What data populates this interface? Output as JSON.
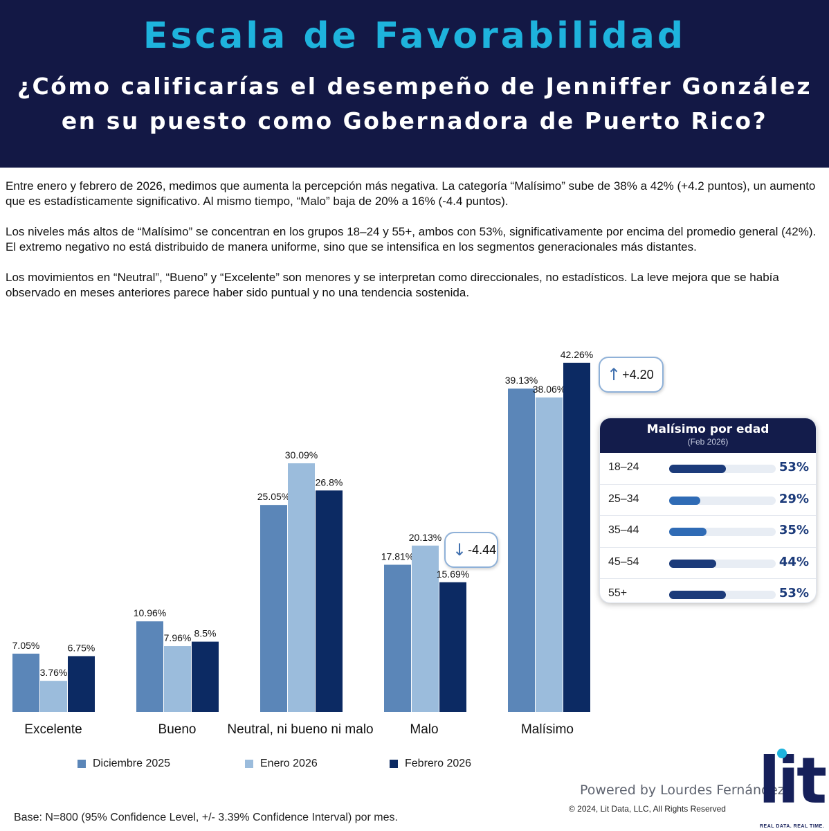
{
  "header": {
    "title": "Escala de Favorabilidad",
    "question_line1": "¿Cómo calificarías el desempeño de Jenniffer González",
    "question_line2": "en su puesto como Gobernadora de Puerto Rico?"
  },
  "paragraphs": [
    "Entre enero y febrero de 2026, medimos que aumenta la percepción más negativa. La categoría “Malísimo” sube de 38% a 42% (+4.2 puntos), un aumento que es estadísticamente significativo. Al mismo tiempo, “Malo” baja de 20% a 16% (-4.4 puntos).",
    "Los niveles más altos de “Malísimo” se concentran en los grupos 18–24 y 55+, ambos con 53%, significativamente por encima del promedio general (42%). El extremo negativo no está distribuido de manera uniforme, sino que se intensifica en los segmentos generacionales más distantes.",
    "Los movimientos en “Neutral”, “Bueno” y “Excelente” son menores y se interpretan como direccionales, no estadísticos. La leve mejora que se había observado en meses anteriores parece haber sido puntual y no una tendencia sostenida."
  ],
  "chart_data": {
    "type": "bar",
    "categories": [
      "Excelente",
      "Bueno",
      "Neutral, ni bueno ni malo",
      "Malo",
      "Malísimo"
    ],
    "series": [
      {
        "name": "Diciembre 2025",
        "color": "#5b86b8",
        "values": [
          7.05,
          10.96,
          25.05,
          17.81,
          39.13
        ],
        "labels": [
          "7.05%",
          "10.96%",
          "25.05%",
          "17.81%",
          "39.13%"
        ]
      },
      {
        "name": "Enero 2026",
        "color": "#9bbcdc",
        "values": [
          3.76,
          7.96,
          30.09,
          20.13,
          38.06
        ],
        "labels": [
          "3.76%",
          "7.96%",
          "30.09%",
          "20.13%",
          "38.06%"
        ]
      },
      {
        "name": "Febrero 2026",
        "color": "#0c2a63",
        "values": [
          6.75,
          8.5,
          26.8,
          15.69,
          42.26
        ],
        "labels": [
          "6.75%",
          "8.5%",
          "26.8%",
          "15.69%",
          "42.26%"
        ]
      }
    ],
    "ylim": [
      0,
      45
    ],
    "grid": false,
    "legend": "bottom",
    "annotations": [
      {
        "category": "Malo",
        "text": "-4.44",
        "direction": "down"
      },
      {
        "category": "Malísimo",
        "text": "+4.20",
        "direction": "up"
      }
    ]
  },
  "age_card": {
    "title": "Malísimo por edad",
    "subtitle": "(Feb 2026)",
    "rows": [
      {
        "label": "18–24",
        "value": 53,
        "text": "53%",
        "color": "#1c3b7a"
      },
      {
        "label": "25–34",
        "value": 29,
        "text": "29%",
        "color": "#2f6bb5"
      },
      {
        "label": "35–44",
        "value": 35,
        "text": "35%",
        "color": "#2f6bb5"
      },
      {
        "label": "45–54",
        "value": 44,
        "text": "44%",
        "color": "#1c3b7a"
      },
      {
        "label": "55+",
        "value": 53,
        "text": "53%",
        "color": "#1c3b7a"
      }
    ]
  },
  "footer": {
    "base": "Base: N=800 (95% Confidence Level, +/- 3.39% Confidence Interval) por mes.",
    "powered": "Powered by Lourdes Fernández",
    "copyright": "© 2024, Lit Data, LLC, All Rights Reserved",
    "logo_text": "lit",
    "logo_tagline": "REAL DATA. REAL TIME."
  },
  "icons": {
    "up": "arrow-up-icon",
    "down": "arrow-down-icon"
  }
}
